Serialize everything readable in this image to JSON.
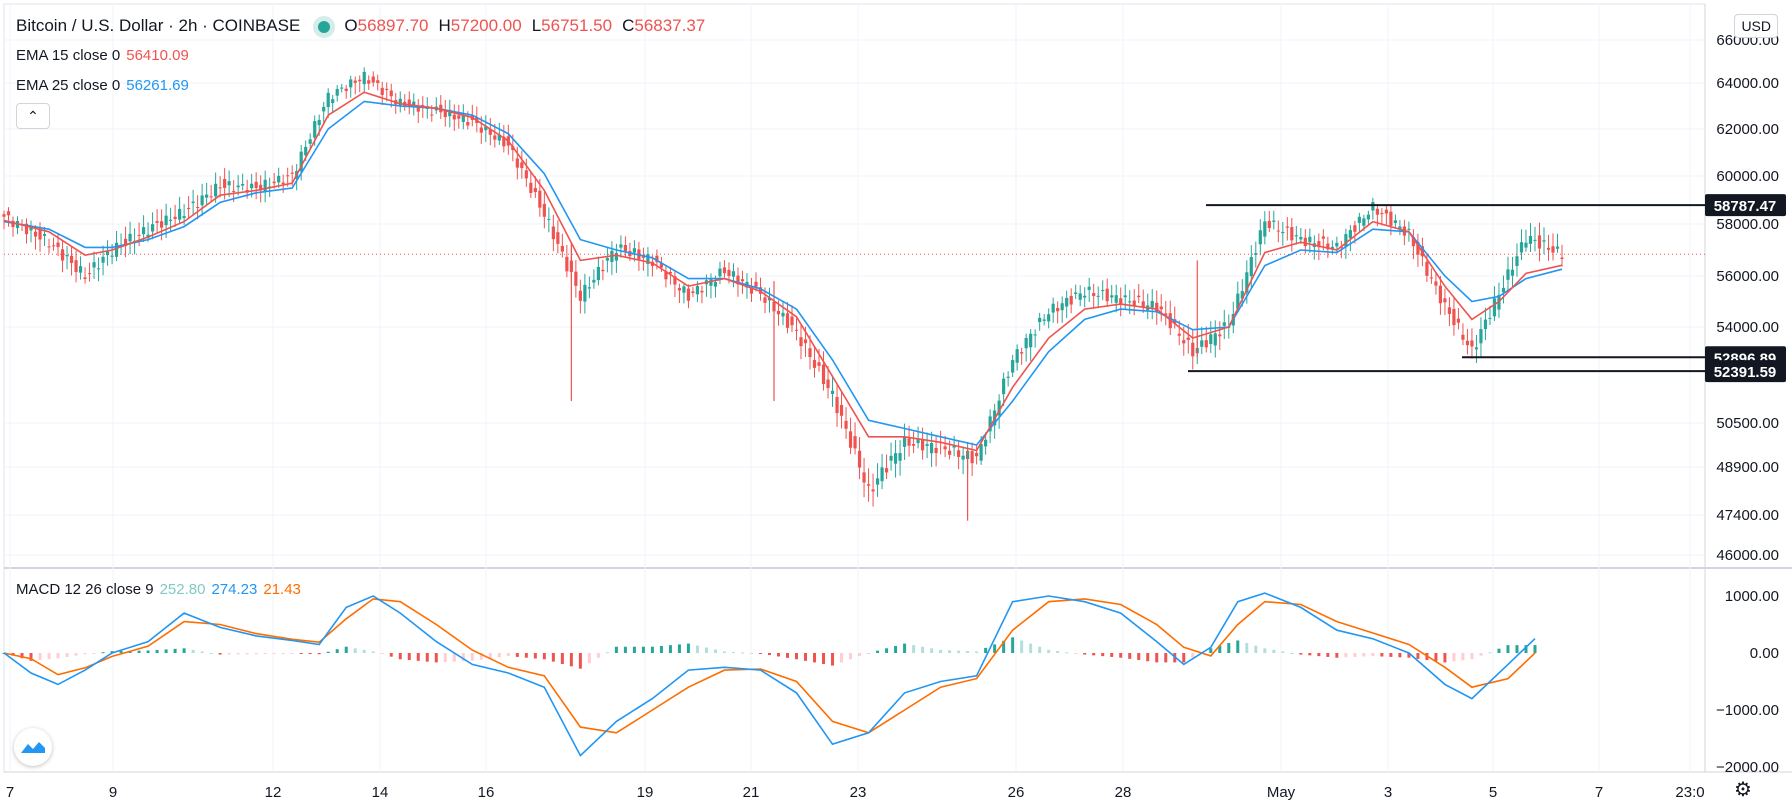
{
  "header": {
    "symbol_title": "Bitcoin / U.S. Dollar · 2h · COINBASE",
    "ohlc": [
      {
        "key": "O",
        "value": "56897.70"
      },
      {
        "key": "H",
        "value": "57200.00"
      },
      {
        "key": "L",
        "value": "56751.50"
      },
      {
        "key": "C",
        "value": "56837.37"
      }
    ],
    "ema15_label": "EMA 15 close 0",
    "ema15_value": "56410.09",
    "ema25_label": "EMA 25 close 0",
    "ema25_value": "56261.69",
    "collapse_icon": "chevron-up-icon"
  },
  "currency_button": "USD",
  "macd_legend": {
    "label": "MACD 12 26 close 9",
    "v1": "252.80",
    "v2": "274.23",
    "v3": "21.43"
  },
  "colors": {
    "up": "#26a69a",
    "down": "#ef5350",
    "ema15": "#ef5350",
    "ema25": "#2196f3",
    "macd_line": "#2196f3",
    "signal_line": "#ff6d00",
    "hist_up_strong": "#26a69a",
    "hist_up_weak": "#b2dfdb",
    "hist_down_strong": "#ef5350",
    "hist_down_weak": "#ffcdd2"
  },
  "chart_data": [
    {
      "type": "candlestick",
      "title": "Bitcoin / U.S. Dollar · 2h · COINBASE",
      "y_ticks": [
        "66000.00",
        "64000.00",
        "62000.00",
        "60000.00",
        "58000.00",
        "56000.00",
        "54000.00",
        "50500.00",
        "48900.00",
        "47400.00",
        "46000.00"
      ],
      "x_ticks": [
        "7",
        "9",
        "12",
        "14",
        "16",
        "19",
        "21",
        "23",
        "26",
        "28",
        "May",
        "3",
        "5",
        "7",
        "23:0"
      ],
      "price_labels": [
        "58787.47",
        "52896.89",
        "52391.59"
      ],
      "last_close": 56837.37,
      "close_path": [
        [
          0,
          58300
        ],
        [
          10,
          57300
        ],
        [
          18,
          56000
        ],
        [
          24,
          57000
        ],
        [
          32,
          57800
        ],
        [
          40,
          58500
        ],
        [
          48,
          59600
        ],
        [
          56,
          59500
        ],
        [
          64,
          60000
        ],
        [
          72,
          63400
        ],
        [
          80,
          64300
        ],
        [
          88,
          63100
        ],
        [
          96,
          62800
        ],
        [
          104,
          62300
        ],
        [
          112,
          61300
        ],
        [
          120,
          58400
        ],
        [
          128,
          55200
        ],
        [
          136,
          57100
        ],
        [
          144,
          56600
        ],
        [
          152,
          55200
        ],
        [
          160,
          56200
        ],
        [
          168,
          55300
        ],
        [
          176,
          53800
        ],
        [
          184,
          51500
        ],
        [
          192,
          48100
        ],
        [
          200,
          49800
        ],
        [
          208,
          49600
        ],
        [
          216,
          49200
        ],
        [
          224,
          52800
        ],
        [
          232,
          54600
        ],
        [
          240,
          55400
        ],
        [
          248,
          55100
        ],
        [
          256,
          54800
        ],
        [
          264,
          53100
        ],
        [
          272,
          54100
        ],
        [
          280,
          58100
        ],
        [
          288,
          57400
        ],
        [
          296,
          57100
        ],
        [
          304,
          58700
        ],
        [
          312,
          57600
        ],
        [
          320,
          54800
        ],
        [
          326,
          53100
        ],
        [
          332,
          55300
        ],
        [
          338,
          57500
        ],
        [
          346,
          56837
        ]
      ],
      "ema15_path": [
        [
          0,
          58150
        ],
        [
          10,
          57700
        ],
        [
          18,
          56800
        ],
        [
          24,
          57000
        ],
        [
          32,
          57500
        ],
        [
          40,
          58100
        ],
        [
          48,
          59200
        ],
        [
          56,
          59400
        ],
        [
          64,
          59700
        ],
        [
          72,
          62600
        ],
        [
          80,
          63600
        ],
        [
          88,
          63100
        ],
        [
          96,
          62900
        ],
        [
          104,
          62500
        ],
        [
          112,
          61500
        ],
        [
          120,
          59400
        ],
        [
          128,
          56600
        ],
        [
          136,
          56800
        ],
        [
          144,
          56500
        ],
        [
          152,
          55600
        ],
        [
          160,
          55900
        ],
        [
          168,
          55400
        ],
        [
          176,
          54400
        ],
        [
          184,
          52200
        ],
        [
          192,
          50000
        ],
        [
          200,
          50000
        ],
        [
          208,
          49800
        ],
        [
          216,
          49500
        ],
        [
          224,
          51800
        ],
        [
          232,
          53600
        ],
        [
          240,
          54700
        ],
        [
          248,
          54900
        ],
        [
          256,
          54700
        ],
        [
          264,
          53600
        ],
        [
          272,
          54000
        ],
        [
          280,
          56900
        ],
        [
          288,
          57300
        ],
        [
          296,
          57000
        ],
        [
          304,
          58100
        ],
        [
          312,
          57700
        ],
        [
          320,
          55600
        ],
        [
          326,
          54300
        ],
        [
          332,
          55000
        ],
        [
          338,
          56100
        ],
        [
          346,
          56410
        ]
      ],
      "ema25_path": [
        [
          0,
          58100
        ],
        [
          10,
          57800
        ],
        [
          18,
          57100
        ],
        [
          24,
          57100
        ],
        [
          32,
          57400
        ],
        [
          40,
          57900
        ],
        [
          48,
          58900
        ],
        [
          56,
          59300
        ],
        [
          64,
          59500
        ],
        [
          72,
          62000
        ],
        [
          80,
          63200
        ],
        [
          88,
          63000
        ],
        [
          96,
          62900
        ],
        [
          104,
          62600
        ],
        [
          112,
          61800
        ],
        [
          120,
          60100
        ],
        [
          128,
          57400
        ],
        [
          136,
          57000
        ],
        [
          144,
          56700
        ],
        [
          152,
          55900
        ],
        [
          160,
          55900
        ],
        [
          168,
          55500
        ],
        [
          176,
          54700
        ],
        [
          184,
          52800
        ],
        [
          192,
          50600
        ],
        [
          200,
          50300
        ],
        [
          208,
          50000
        ],
        [
          216,
          49700
        ],
        [
          224,
          51300
        ],
        [
          232,
          53100
        ],
        [
          240,
          54300
        ],
        [
          248,
          54700
        ],
        [
          256,
          54600
        ],
        [
          264,
          53900
        ],
        [
          272,
          54000
        ],
        [
          280,
          56400
        ],
        [
          288,
          57000
        ],
        [
          296,
          56900
        ],
        [
          304,
          57800
        ],
        [
          312,
          57700
        ],
        [
          320,
          56000
        ],
        [
          326,
          55000
        ],
        [
          332,
          55200
        ],
        [
          338,
          55900
        ],
        [
          346,
          56261
        ]
      ],
      "spikes": [
        {
          "x": 126,
          "low": 51300,
          "high": 57300
        },
        {
          "x": 171,
          "low": 51300,
          "high": 55800
        },
        {
          "x": 214,
          "low": 47200,
          "high": 49600
        },
        {
          "x": 265,
          "low": 52900,
          "high": 56600
        }
      ]
    },
    {
      "type": "macd",
      "label": "MACD 12 26 close 9",
      "y_ticks": [
        "1000.00",
        "0.00",
        "−1000.00",
        "−2000.00"
      ],
      "macd_path": [
        [
          0,
          0
        ],
        [
          6,
          -350
        ],
        [
          12,
          -550
        ],
        [
          18,
          -300
        ],
        [
          24,
          0
        ],
        [
          32,
          200
        ],
        [
          40,
          700
        ],
        [
          48,
          450
        ],
        [
          56,
          300
        ],
        [
          64,
          220
        ],
        [
          70,
          150
        ],
        [
          76,
          800
        ],
        [
          82,
          1000
        ],
        [
          88,
          700
        ],
        [
          96,
          200
        ],
        [
          104,
          -200
        ],
        [
          112,
          -350
        ],
        [
          120,
          -600
        ],
        [
          128,
          -1800
        ],
        [
          136,
          -1200
        ],
        [
          144,
          -800
        ],
        [
          152,
          -300
        ],
        [
          160,
          -250
        ],
        [
          168,
          -300
        ],
        [
          176,
          -700
        ],
        [
          184,
          -1600
        ],
        [
          192,
          -1400
        ],
        [
          200,
          -700
        ],
        [
          208,
          -500
        ],
        [
          216,
          -400
        ],
        [
          224,
          900
        ],
        [
          232,
          1000
        ],
        [
          240,
          900
        ],
        [
          248,
          700
        ],
        [
          256,
          200
        ],
        [
          262,
          -200
        ],
        [
          268,
          100
        ],
        [
          274,
          900
        ],
        [
          280,
          1050
        ],
        [
          288,
          800
        ],
        [
          296,
          400
        ],
        [
          304,
          250
        ],
        [
          312,
          0
        ],
        [
          320,
          -550
        ],
        [
          326,
          -800
        ],
        [
          334,
          -200
        ],
        [
          340,
          252
        ]
      ],
      "signal_path": [
        [
          0,
          0
        ],
        [
          6,
          -100
        ],
        [
          12,
          -380
        ],
        [
          18,
          -260
        ],
        [
          24,
          -60
        ],
        [
          32,
          120
        ],
        [
          40,
          550
        ],
        [
          48,
          500
        ],
        [
          56,
          340
        ],
        [
          64,
          240
        ],
        [
          70,
          190
        ],
        [
          76,
          600
        ],
        [
          82,
          950
        ],
        [
          88,
          900
        ],
        [
          96,
          500
        ],
        [
          104,
          50
        ],
        [
          112,
          -250
        ],
        [
          120,
          -400
        ],
        [
          128,
          -1300
        ],
        [
          136,
          -1400
        ],
        [
          144,
          -1000
        ],
        [
          152,
          -600
        ],
        [
          160,
          -300
        ],
        [
          168,
          -280
        ],
        [
          176,
          -500
        ],
        [
          184,
          -1200
        ],
        [
          192,
          -1400
        ],
        [
          200,
          -1000
        ],
        [
          208,
          -600
        ],
        [
          216,
          -450
        ],
        [
          224,
          400
        ],
        [
          232,
          900
        ],
        [
          240,
          950
        ],
        [
          248,
          850
        ],
        [
          256,
          500
        ],
        [
          262,
          100
        ],
        [
          268,
          -50
        ],
        [
          274,
          500
        ],
        [
          280,
          900
        ],
        [
          288,
          850
        ],
        [
          296,
          550
        ],
        [
          304,
          350
        ],
        [
          312,
          150
        ],
        [
          320,
          -250
        ],
        [
          326,
          -600
        ],
        [
          334,
          -450
        ],
        [
          340,
          0
        ]
      ]
    }
  ]
}
